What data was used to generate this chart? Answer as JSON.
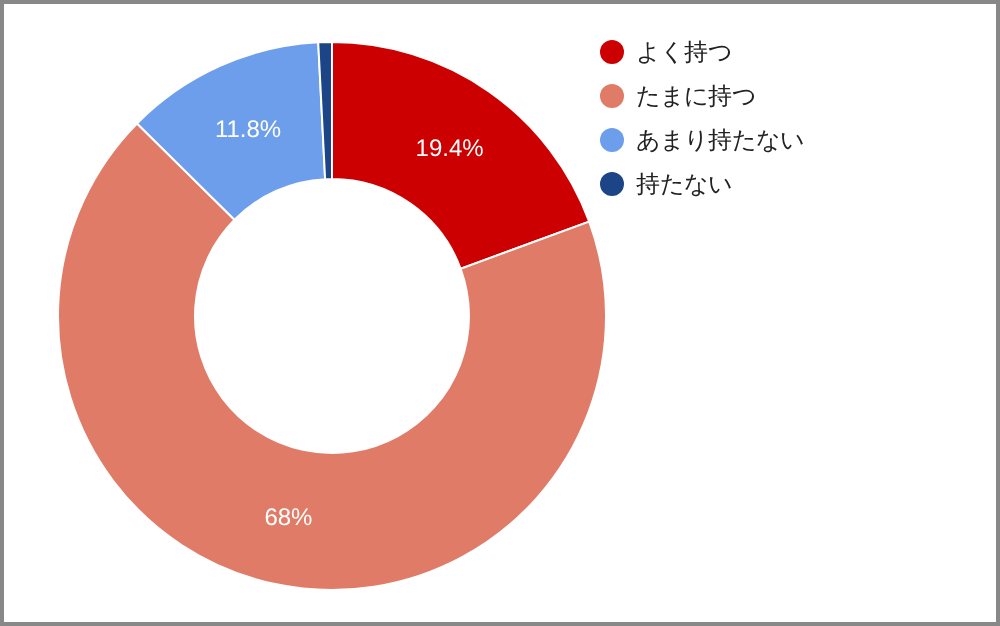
{
  "chart_data": {
    "type": "donut",
    "categories": [
      "よく持つ",
      "たまに持つ",
      "あまり持たない",
      "持たない"
    ],
    "values": [
      19.4,
      68,
      11.8,
      0.8
    ],
    "colors": [
      "#cc0000",
      "#e07b67",
      "#6d9eeb",
      "#1c4587"
    ],
    "value_labels": [
      "19.4%",
      "68%",
      "11.8%",
      null
    ],
    "legend": "top right"
  }
}
